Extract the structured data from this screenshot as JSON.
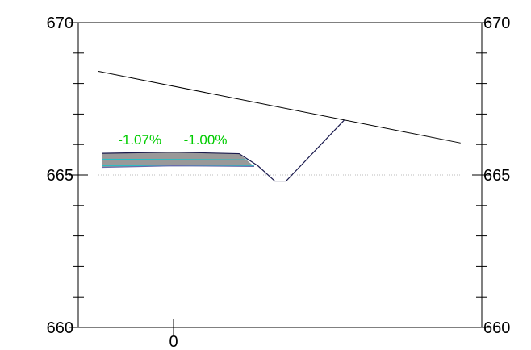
{
  "chart_data": {
    "type": "line",
    "title": "",
    "xlabel": "",
    "ylabel": "",
    "ylim": [
      660,
      670
    ],
    "xlim": [
      -4,
      16
    ],
    "y_ticks": [
      {
        "value": 670,
        "label": "670"
      },
      {
        "value": 665,
        "label": "665"
      },
      {
        "value": 660,
        "label": "660"
      }
    ],
    "x_ticks": [
      {
        "value": 0,
        "label": "0"
      }
    ],
    "reference_line_y": 665,
    "series": [
      {
        "role": "existing-ground",
        "color": "#000000",
        "x": [
          -4,
          15.3
        ],
        "y": [
          668.4,
          666.05
        ]
      },
      {
        "role": "design-section",
        "color": "#1a1a4d",
        "x": [
          -3.8,
          0,
          3.5,
          4.5,
          5.4,
          6.0,
          9.1
        ],
        "y": [
          665.71,
          665.75,
          665.7,
          665.3,
          664.8,
          664.8,
          666.8
        ]
      },
      {
        "role": "pavement-bottom",
        "color": "#6a6aaa",
        "x": [
          -3.8,
          0,
          4.3
        ],
        "y": [
          665.25,
          665.3,
          665.28
        ]
      }
    ],
    "annotations": [
      {
        "text": "-1.07%",
        "x": -1.8,
        "y": 665.95
      },
      {
        "text": "-1.00%",
        "x": 1.7,
        "y": 665.95
      }
    ],
    "colors": {
      "grade_text": "#00cc00",
      "pavement_fill": "#999999",
      "pavement_edge": "#1fc0c8",
      "reference_line": "#bbbbbb"
    }
  }
}
